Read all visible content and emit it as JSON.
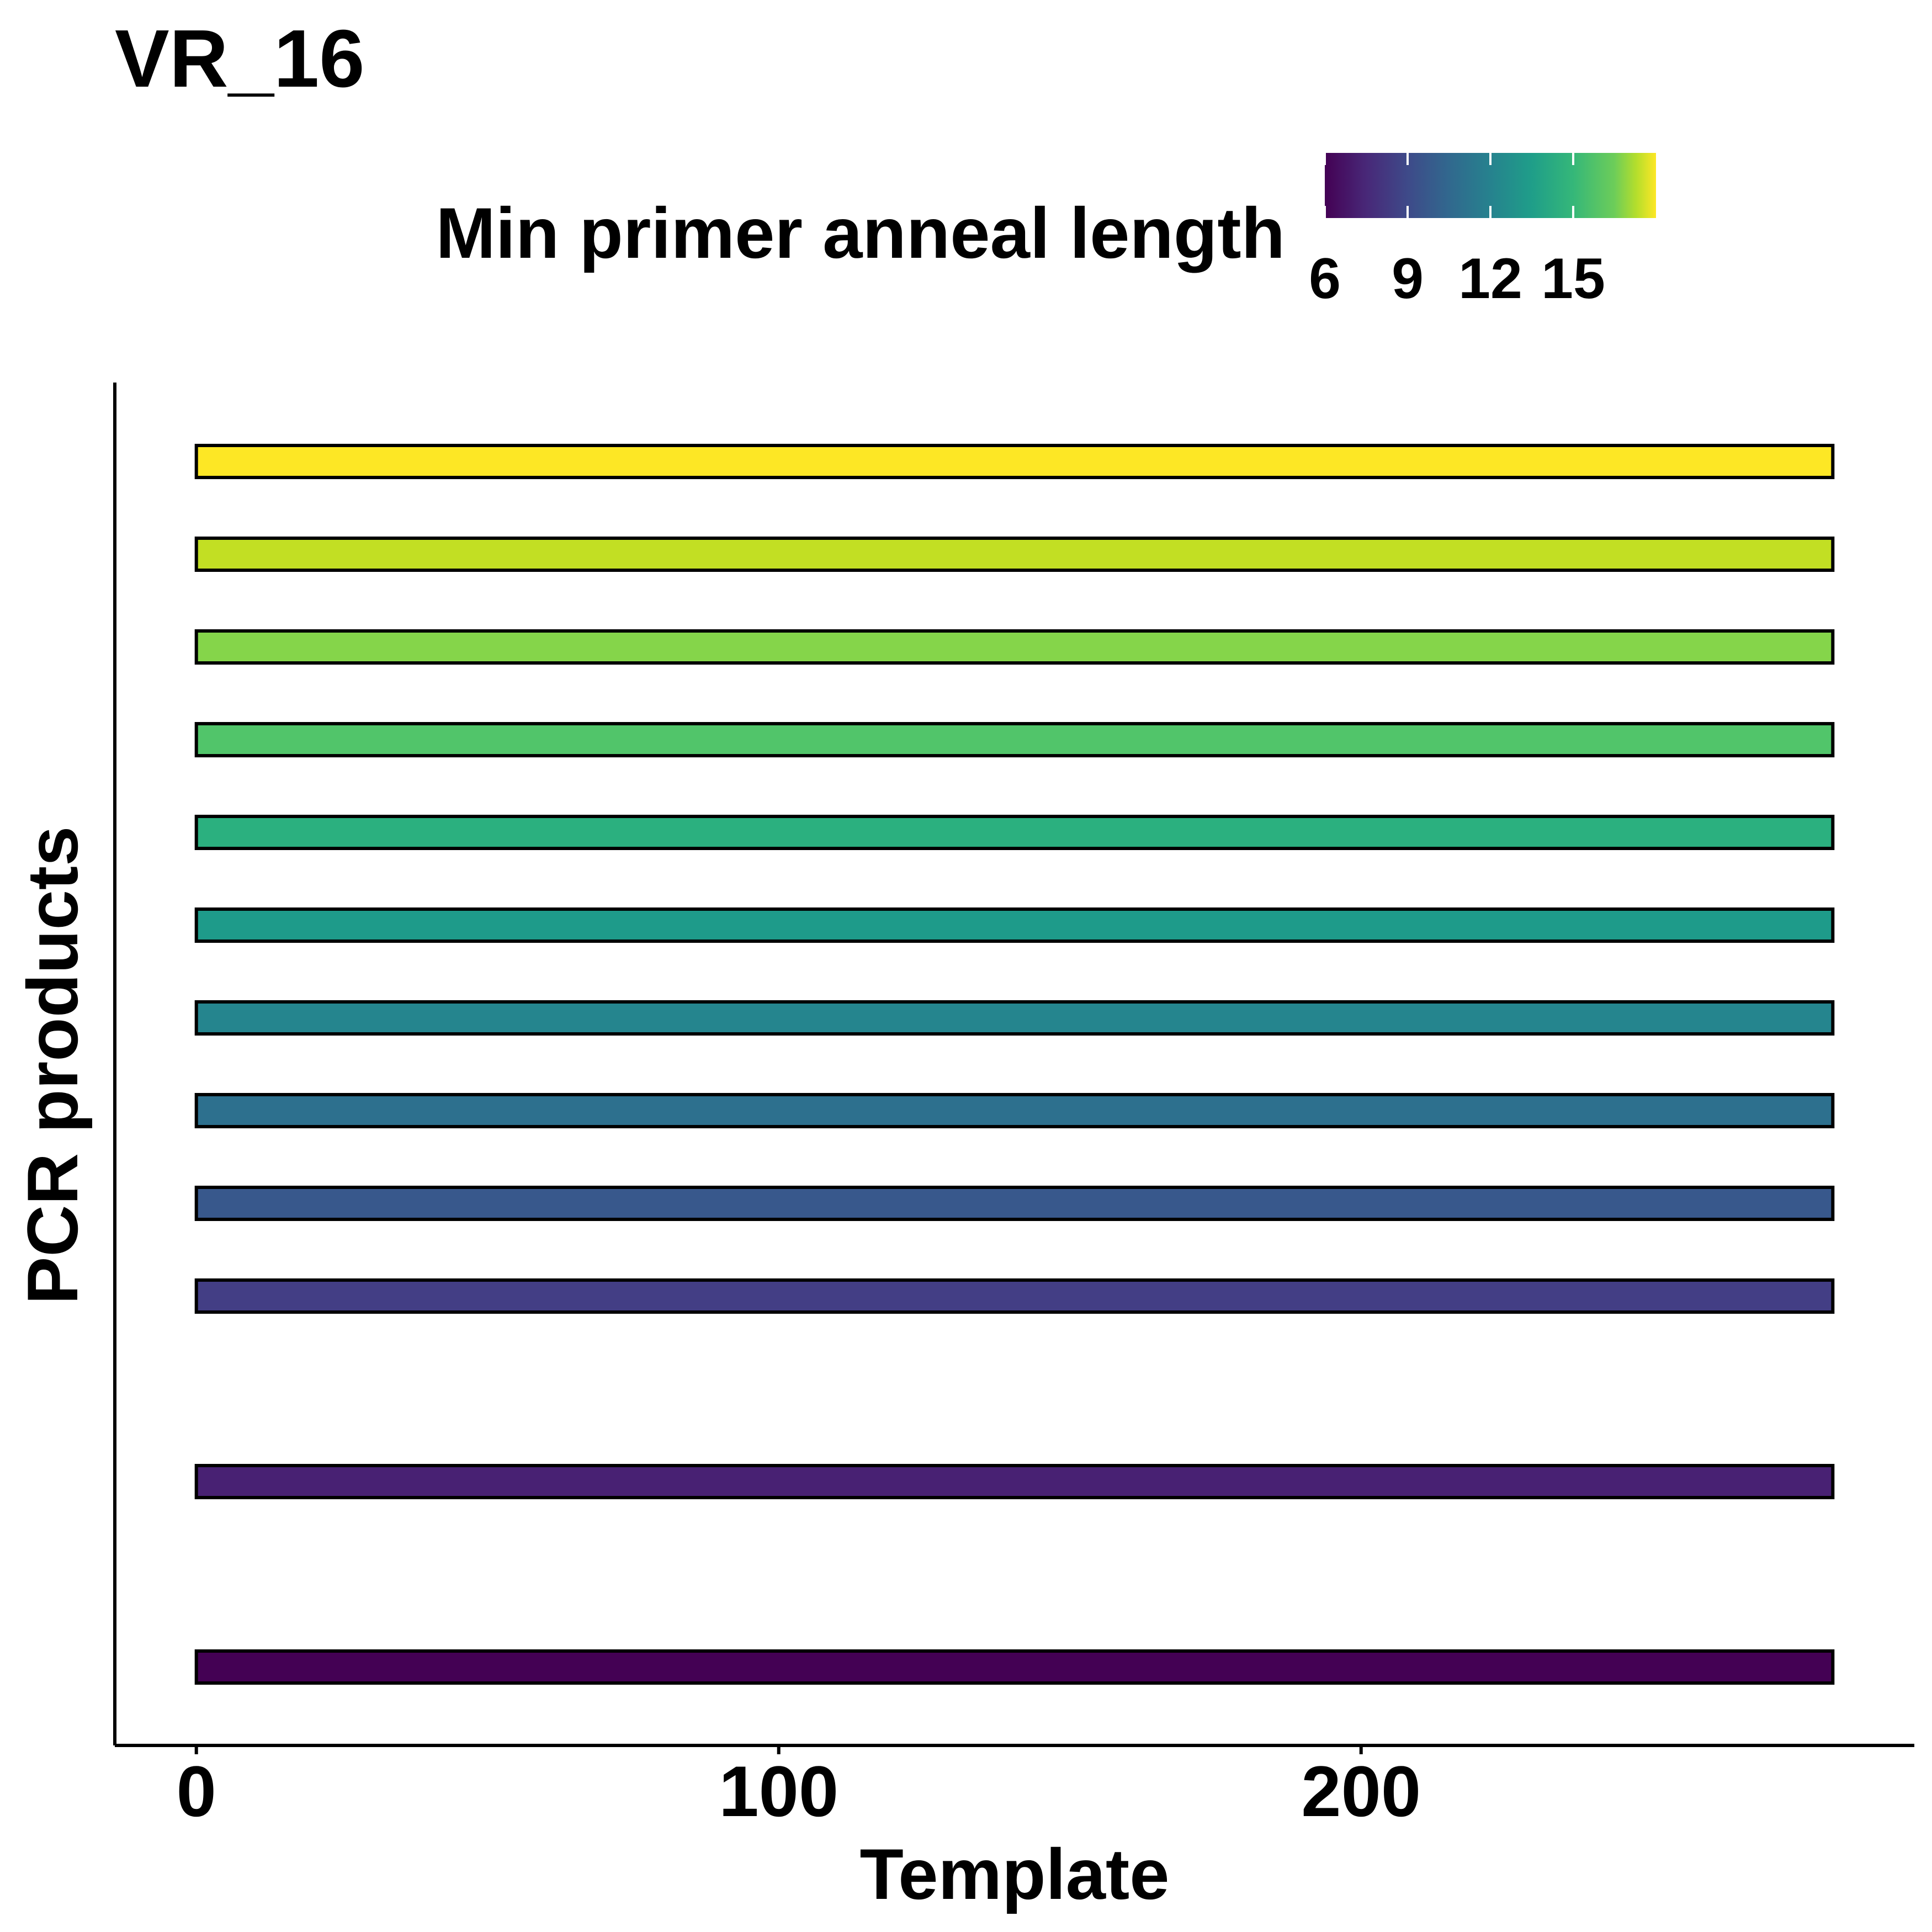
{
  "chart_data": {
    "type": "bar",
    "orientation": "horizontal",
    "title": "VR_16",
    "xlabel": "Template",
    "ylabel": "PCR products",
    "xlim": [
      -14,
      295
    ],
    "x_ticks": [
      0,
      100,
      200
    ],
    "grid": false,
    "legend": {
      "title": "Min primer anneal length",
      "placement": "top",
      "type": "colorbar",
      "scale": "viridis",
      "range": [
        6,
        18
      ],
      "ticks": [
        "6",
        "9",
        "12",
        "15"
      ]
    },
    "bars": [
      {
        "row": 1,
        "min_anneal_length": 6,
        "start": 0,
        "end": 281,
        "color": "#440154"
      },
      {
        "row": 3,
        "min_anneal_length": 7,
        "start": 0,
        "end": 281,
        "color": "#482173"
      },
      {
        "row": 5,
        "min_anneal_length": 8,
        "start": 0,
        "end": 281,
        "color": "#433E85"
      },
      {
        "row": 6,
        "min_anneal_length": 9,
        "start": 0,
        "end": 281,
        "color": "#38588C"
      },
      {
        "row": 7,
        "min_anneal_length": 10,
        "start": 0,
        "end": 281,
        "color": "#2D708E"
      },
      {
        "row": 8,
        "min_anneal_length": 11,
        "start": 0,
        "end": 281,
        "color": "#25858E"
      },
      {
        "row": 9,
        "min_anneal_length": 12,
        "start": 0,
        "end": 281,
        "color": "#1E9B8A"
      },
      {
        "row": 10,
        "min_anneal_length": 13,
        "start": 0,
        "end": 281,
        "color": "#2BB07F"
      },
      {
        "row": 11,
        "min_anneal_length": 14,
        "start": 0,
        "end": 281,
        "color": "#51C56A"
      },
      {
        "row": 12,
        "min_anneal_length": 15,
        "start": 0,
        "end": 281,
        "color": "#85D54A"
      },
      {
        "row": 13,
        "min_anneal_length": 16,
        "start": 0,
        "end": 281,
        "color": "#C2DF23"
      },
      {
        "row": 14,
        "min_anneal_length": 17,
        "start": 0,
        "end": 281,
        "color": "#FDE725"
      }
    ]
  }
}
